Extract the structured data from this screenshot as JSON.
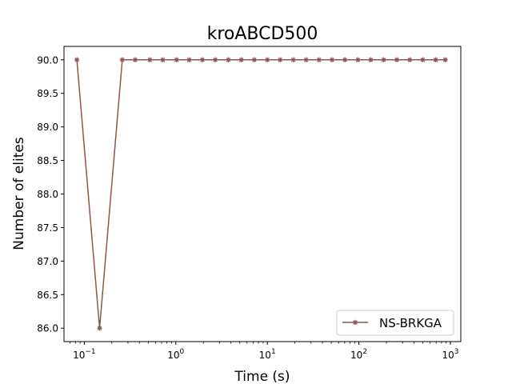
{
  "chart_data": {
    "type": "line",
    "title": "kroABCD500",
    "xlabel": "Time (s)",
    "ylabel": "Number of elites",
    "xscale": "log",
    "xlim": [
      0.06,
      1300
    ],
    "ylim": [
      85.8,
      90.2
    ],
    "grid": false,
    "legend_position": "lower-right",
    "x_ticks": [
      {
        "value": 0.1,
        "base": "10",
        "exp": "−1"
      },
      {
        "value": 1,
        "base": "10",
        "exp": "0"
      },
      {
        "value": 10,
        "base": "10",
        "exp": "1"
      },
      {
        "value": 100,
        "base": "10",
        "exp": "2"
      },
      {
        "value": 1000,
        "base": "10",
        "exp": "3"
      }
    ],
    "y_ticks": [
      "86.0",
      "86.5",
      "87.0",
      "87.5",
      "88.0",
      "88.5",
      "89.0",
      "89.5",
      "90.0"
    ],
    "series": [
      {
        "name": "NS-BRKGA",
        "color": "#8c564b",
        "marker": "x",
        "x": [
          0.083,
          0.147,
          0.26,
          0.36,
          0.52,
          0.72,
          1.02,
          1.4,
          1.95,
          2.7,
          3.75,
          5.2,
          7.2,
          10.0,
          13.8,
          19.2,
          26.5,
          36.7,
          50.9,
          70.5,
          97.7,
          135,
          187,
          260,
          360,
          498,
          690,
          880
        ],
        "y": [
          90,
          86,
          90,
          90,
          90,
          90,
          90,
          90,
          90,
          90,
          90,
          90,
          90,
          90,
          90,
          90,
          90,
          90,
          90,
          90,
          90,
          90,
          90,
          90,
          90,
          90,
          90,
          90
        ]
      }
    ]
  }
}
